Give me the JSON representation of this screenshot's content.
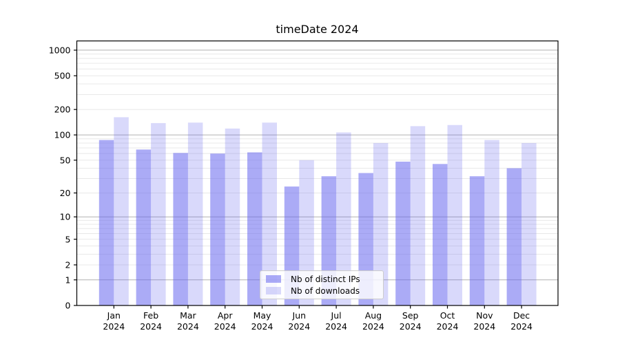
{
  "chart_data": {
    "type": "bar",
    "title": "timeDate 2024",
    "categories": [
      "Jan",
      "Feb",
      "Mar",
      "Apr",
      "May",
      "Jun",
      "Jul",
      "Aug",
      "Sep",
      "Oct",
      "Nov",
      "Dec"
    ],
    "x_tick_year": "2024",
    "series": [
      {
        "name": "Nb of distinct IPs",
        "values": [
          87,
          67,
          61,
          60,
          62,
          24,
          32,
          35,
          48,
          45,
          32,
          40
        ]
      },
      {
        "name": "Nb of downloads",
        "values": [
          162,
          138,
          140,
          119,
          140,
          50,
          107,
          80,
          127,
          131,
          87,
          80
        ]
      }
    ],
    "y_ticks": [
      1000,
      500,
      200,
      100,
      50,
      20,
      10,
      5,
      2,
      1,
      0
    ],
    "y_scale": "log10(value+1)",
    "ylim": [
      0,
      1230
    ],
    "grid": "horizontal major+minor",
    "legend_position": "lower center",
    "colors": {
      "series_base": "#6666ee",
      "distinct_ips_fill": "rgba(102,102,238,0.55)",
      "downloads_fill": "rgba(102,102,238,0.25)",
      "grid_major": "#b0b0b0",
      "grid_minor": "#e8e8e8",
      "axis": "#000000",
      "background": "#ffffff"
    }
  }
}
